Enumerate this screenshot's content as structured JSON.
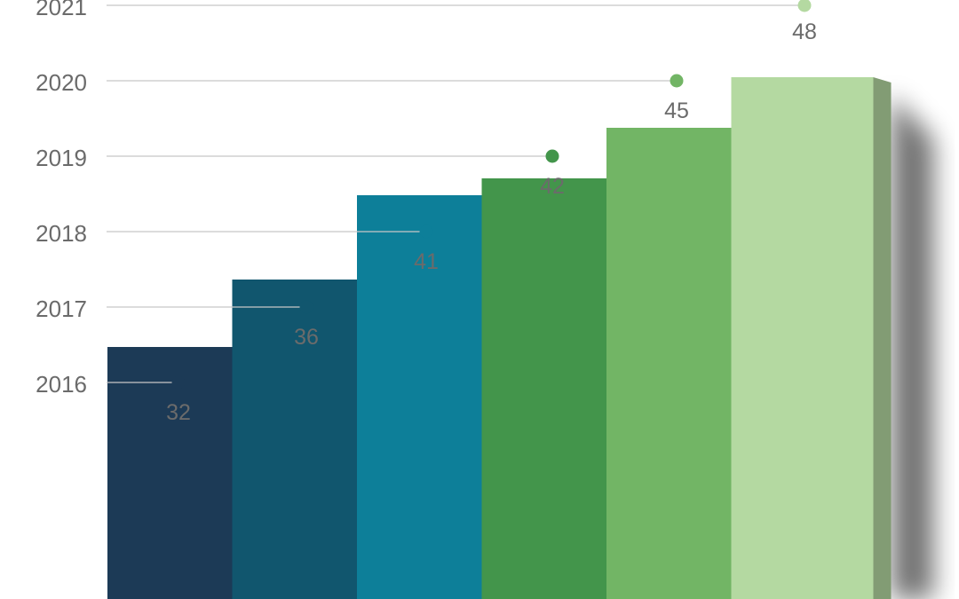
{
  "chart_data": {
    "type": "bar",
    "categories": [
      "2016",
      "2017",
      "2018",
      "2019",
      "2020",
      "2021"
    ],
    "values": [
      32,
      36,
      41,
      42,
      45,
      48
    ],
    "value_labels": [
      "32",
      "36",
      "41",
      "42",
      "45",
      "48"
    ],
    "title": "",
    "xlabel": "",
    "ylabel": "",
    "grid": true,
    "legend": "none",
    "colors": [
      "#1c3a56",
      "#11566e",
      "#0d7f99",
      "#43954b",
      "#72b565",
      "#b4d9a1"
    ]
  }
}
